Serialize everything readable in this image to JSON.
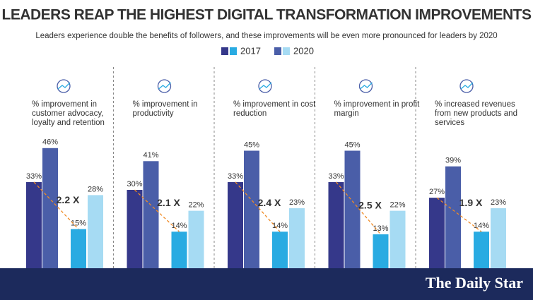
{
  "header": {
    "title": "LEADERS REAP THE HIGHEST DIGITAL TRANSFORMATION IMPROVEMENTS",
    "subtitle": "Leaders experience double the benefits of followers, and these improvements will be even more pronounced for leaders by 2020"
  },
  "chart_data": [
    {
      "type": "bar",
      "title": "% improvement in customer advocacy, loyalty and retention",
      "annotation": "2.2 X",
      "series": [
        {
          "name": "2017",
          "colors": [
            "#35388a",
            "#29abe2"
          ],
          "values": [
            33,
            15
          ],
          "value_labels": [
            "33%",
            "15%"
          ]
        },
        {
          "name": "2020",
          "colors": [
            "#4a5ea8",
            "#a6dbf3"
          ],
          "values": [
            46,
            28
          ],
          "value_labels": [
            "46%",
            "28%"
          ]
        }
      ]
    },
    {
      "type": "bar",
      "title": "% improvement in productivity",
      "annotation": "2.1 X",
      "series": [
        {
          "name": "2017",
          "colors": [
            "#35388a",
            "#29abe2"
          ],
          "values": [
            30,
            14
          ],
          "value_labels": [
            "30%",
            "14%"
          ]
        },
        {
          "name": "2020",
          "colors": [
            "#4a5ea8",
            "#a6dbf3"
          ],
          "values": [
            41,
            22
          ],
          "value_labels": [
            "41%",
            "22%"
          ]
        }
      ]
    },
    {
      "type": "bar",
      "title": "% improvement in cost reduction",
      "annotation": "2.4 X",
      "series": [
        {
          "name": "2017",
          "colors": [
            "#35388a",
            "#29abe2"
          ],
          "values": [
            33,
            14
          ],
          "value_labels": [
            "33%",
            "14%"
          ]
        },
        {
          "name": "2020",
          "colors": [
            "#4a5ea8",
            "#a6dbf3"
          ],
          "values": [
            45,
            23
          ],
          "value_labels": [
            "45%",
            "23%"
          ]
        }
      ]
    },
    {
      "type": "bar",
      "title": "% improvement in profit margin",
      "annotation": "2.5 X",
      "series": [
        {
          "name": "2017",
          "colors": [
            "#35388a",
            "#29abe2"
          ],
          "values": [
            33,
            13
          ],
          "value_labels": [
            "33%",
            "13%"
          ]
        },
        {
          "name": "2020",
          "colors": [
            "#4a5ea8",
            "#a6dbf3"
          ],
          "values": [
            45,
            22
          ],
          "value_labels": [
            "45%",
            "22%"
          ]
        }
      ]
    },
    {
      "type": "bar",
      "title": "% increased revenues from new products and services",
      "annotation": "1.9 X",
      "series": [
        {
          "name": "2017",
          "colors": [
            "#35388a",
            "#29abe2"
          ],
          "values": [
            27,
            14
          ],
          "value_labels": [
            "27%",
            "14%"
          ]
        },
        {
          "name": "2020",
          "colors": [
            "#4a5ea8",
            "#a6dbf3"
          ],
          "values": [
            39,
            23
          ],
          "value_labels": [
            "39%",
            "23%"
          ]
        }
      ]
    }
  ],
  "footer": {
    "brand": "The Daily Star"
  }
}
